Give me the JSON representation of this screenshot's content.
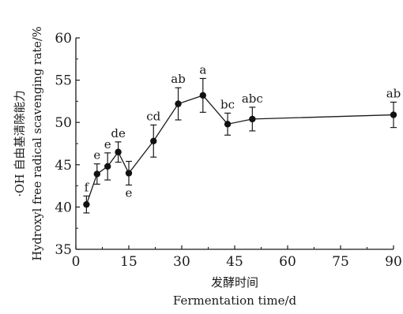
{
  "chart_data": {
    "type": "line",
    "xlabel_cn": "发酵时间",
    "xlabel": "Fermentation time/d",
    "ylabel_cn": "·OH 自由基清除能力",
    "ylabel": "Hydroxyl free radical scavenging rate/%",
    "xlim": [
      0,
      90
    ],
    "ylim": [
      35,
      60
    ],
    "xticks": [
      0,
      15,
      30,
      45,
      60,
      75,
      90
    ],
    "yticks": [
      35,
      40,
      45,
      50,
      55,
      60
    ],
    "grid": false,
    "series": [
      {
        "x": [
          3,
          6,
          9,
          12,
          15,
          22,
          29,
          36,
          43,
          50,
          90
        ],
        "y": [
          40.3,
          43.9,
          44.8,
          46.5,
          44.0,
          47.8,
          52.2,
          53.2,
          49.8,
          50.4,
          50.9
        ],
        "err": [
          1.0,
          1.2,
          1.6,
          1.2,
          1.4,
          1.9,
          1.9,
          2.0,
          1.3,
          1.4,
          1.5
        ],
        "labels": [
          "f",
          "e",
          "e",
          "de",
          "e",
          "cd",
          "ab",
          "a",
          "bc",
          "abc",
          "ab"
        ],
        "label_pos": [
          "above",
          "above",
          "above",
          "above",
          "below",
          "above",
          "above",
          "above",
          "above",
          "above",
          "above"
        ]
      }
    ]
  }
}
